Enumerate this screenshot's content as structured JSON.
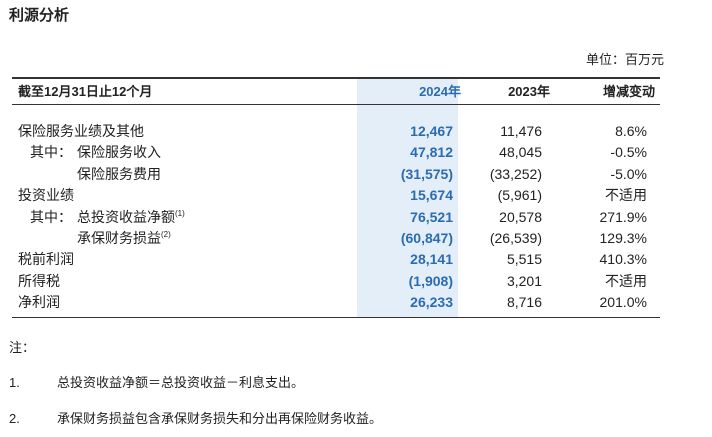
{
  "header": {
    "title": "利源分析",
    "unit": "单位：百万元"
  },
  "table": {
    "columns": [
      "截至12月31日止12个月",
      "2024年",
      "2023年",
      "增减变动"
    ],
    "rows": [
      {
        "prefix": "",
        "label": "保险服务业绩及其他",
        "indent": false,
        "note": "",
        "cells": [
          "12,467",
          "11,476",
          "8.6%"
        ]
      },
      {
        "prefix": "其中：",
        "label": "保险服务收入",
        "indent": false,
        "note": "",
        "cells": [
          "47,812",
          "48,045",
          "-0.5%"
        ]
      },
      {
        "prefix": "",
        "label": "保险服务费用",
        "indent": true,
        "note": "",
        "cells": [
          "(31,575)",
          "(33,252)",
          "-5.0%"
        ]
      },
      {
        "prefix": "",
        "label": "投资业绩",
        "indent": false,
        "note": "",
        "cells": [
          "15,674",
          "(5,961)",
          "不适用"
        ]
      },
      {
        "prefix": "其中：",
        "label": "总投资收益净额",
        "indent": false,
        "note": "(1)",
        "cells": [
          "76,521",
          "20,578",
          "271.9%"
        ]
      },
      {
        "prefix": "",
        "label": "承保财务损益",
        "indent": true,
        "note": "(2)",
        "cells": [
          "(60,847)",
          "(26,539)",
          "129.3%"
        ]
      },
      {
        "prefix": "",
        "label": "税前利润",
        "indent": false,
        "note": "",
        "cells": [
          "28,141",
          "5,515",
          "410.3%"
        ]
      },
      {
        "prefix": "",
        "label": "所得税",
        "indent": false,
        "note": "",
        "cells": [
          "(1,908)",
          "3,201",
          "不适用"
        ]
      },
      {
        "prefix": "",
        "label": "净利润",
        "indent": false,
        "note": "",
        "cells": [
          "26,233",
          "8,716",
          "201.0%"
        ]
      }
    ]
  },
  "notes": {
    "title": "注：",
    "items": [
      {
        "num": "1.",
        "text": "总投资收益净额＝总投资收益－利息支出。"
      },
      {
        "num": "2.",
        "text": "承保财务损益包含承保财务损失和分出再保险财务收益。"
      }
    ]
  }
}
